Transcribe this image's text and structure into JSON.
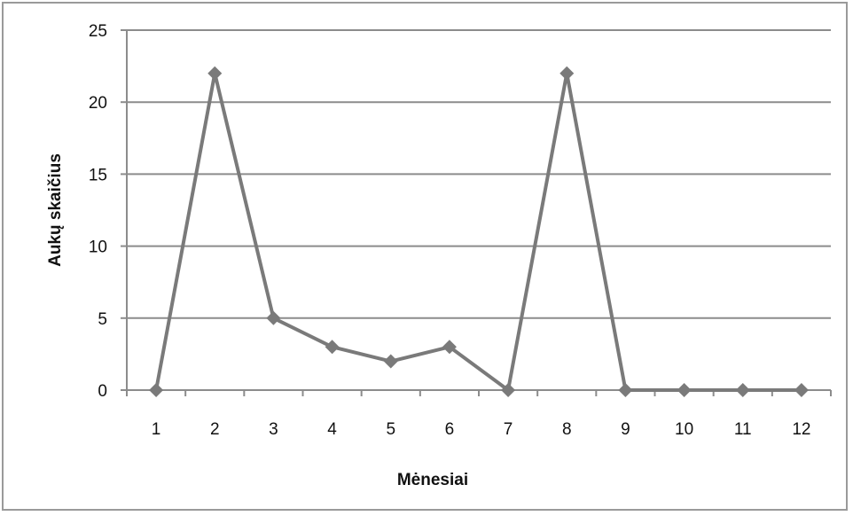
{
  "chart_data": {
    "type": "line",
    "xlabel": "Mėnesiai",
    "ylabel": "Aukų skaičius",
    "x": [
      "1",
      "2",
      "3",
      "4",
      "5",
      "6",
      "7",
      "8",
      "9",
      "10",
      "11",
      "12"
    ],
    "series": [
      {
        "values": [
          0,
          22,
          5,
          3,
          2,
          3,
          0,
          22,
          0,
          0,
          0,
          0
        ]
      }
    ],
    "ylim": [
      0,
      25
    ],
    "yticks": [
      0,
      5,
      10,
      15,
      20,
      25
    ],
    "grid": "horizontal",
    "marker": "diamond",
    "colors": {
      "line": "#7a7a7a",
      "marker": "#7a7a7a",
      "grid": "#8c8c8c",
      "axis": "#8c8c8c"
    }
  }
}
